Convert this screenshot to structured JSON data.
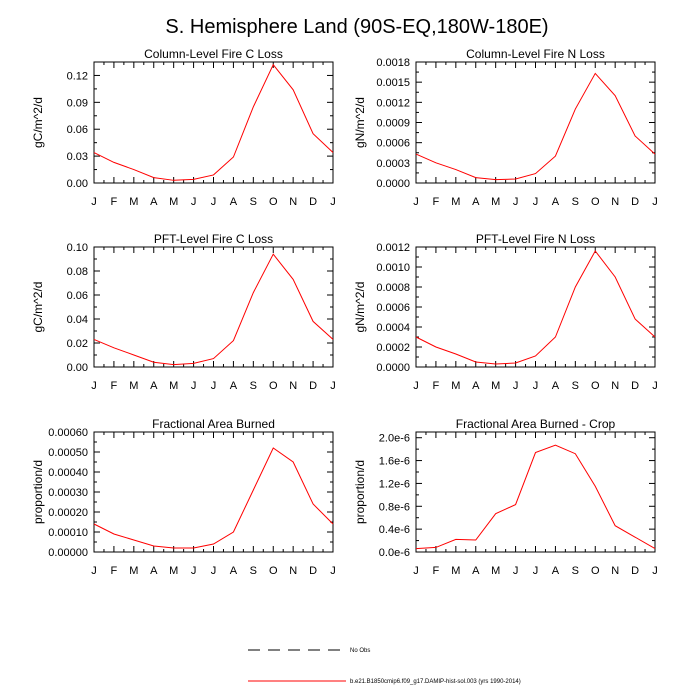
{
  "figure": {
    "title": "S. Hemisphere Land (90S-EQ,180W-180E)"
  },
  "legend": {
    "items": [
      {
        "label": "No Obs",
        "color": "#000000",
        "dash": "dashed"
      },
      {
        "label": "b.e21.B1850cmip6.f09_g17.DAMIP-hist-sol.003 (yrs 1990-2014)",
        "color": "#ff0000",
        "dash": "solid"
      }
    ]
  },
  "chart_data": [
    {
      "type": "line",
      "title": "Column-Level Fire C Loss",
      "xlabel": "",
      "ylabel": "gC/m^2/d",
      "categories": [
        "J",
        "F",
        "M",
        "A",
        "M",
        "J",
        "J",
        "A",
        "S",
        "O",
        "N",
        "D",
        "J"
      ],
      "ylim": [
        0,
        0.135
      ],
      "yticks": [
        "0.00",
        "0.03",
        "0.06",
        "0.09",
        "0.12"
      ],
      "ytick_values": [
        0,
        0.03,
        0.06,
        0.09,
        0.12
      ],
      "series": [
        {
          "color": "#ff0000",
          "values": [
            0.034,
            0.023,
            0.015,
            0.006,
            0.003,
            0.004,
            0.009,
            0.029,
            0.085,
            0.132,
            0.104,
            0.055,
            0.034
          ]
        }
      ]
    },
    {
      "type": "line",
      "title": "Column-Level Fire N Loss",
      "xlabel": "",
      "ylabel": "gN/m^2/d",
      "categories": [
        "J",
        "F",
        "M",
        "A",
        "M",
        "J",
        "J",
        "A",
        "S",
        "O",
        "N",
        "D",
        "J"
      ],
      "ylim": [
        0,
        0.0018
      ],
      "yticks": [
        "0.0000",
        "0.0003",
        "0.0006",
        "0.0009",
        "0.0012",
        "0.0015",
        "0.0018"
      ],
      "ytick_values": [
        0,
        0.0003,
        0.0006,
        0.0009,
        0.0012,
        0.0015,
        0.0018
      ],
      "series": [
        {
          "color": "#ff0000",
          "values": [
            0.00043,
            0.0003,
            0.0002,
            8e-05,
            5e-05,
            6e-05,
            0.00014,
            0.0004,
            0.0011,
            0.00163,
            0.0013,
            0.0007,
            0.00043
          ]
        }
      ]
    },
    {
      "type": "line",
      "title": "PFT-Level Fire C Loss",
      "xlabel": "",
      "ylabel": "gC/m^2/d",
      "categories": [
        "J",
        "F",
        "M",
        "A",
        "M",
        "J",
        "J",
        "A",
        "S",
        "O",
        "N",
        "D",
        "J"
      ],
      "ylim": [
        0,
        0.1
      ],
      "yticks": [
        "0.00",
        "0.02",
        "0.04",
        "0.06",
        "0.08",
        "0.10"
      ],
      "ytick_values": [
        0,
        0.02,
        0.04,
        0.06,
        0.08,
        0.1
      ],
      "series": [
        {
          "color": "#ff0000",
          "values": [
            0.023,
            0.016,
            0.01,
            0.004,
            0.002,
            0.003,
            0.007,
            0.022,
            0.062,
            0.094,
            0.073,
            0.038,
            0.023
          ]
        }
      ]
    },
    {
      "type": "line",
      "title": "PFT-Level Fire N Loss",
      "xlabel": "",
      "ylabel": "gN/m^2/d",
      "categories": [
        "J",
        "F",
        "M",
        "A",
        "M",
        "J",
        "J",
        "A",
        "S",
        "O",
        "N",
        "D",
        "J"
      ],
      "ylim": [
        0,
        0.0012
      ],
      "yticks": [
        "0.0000",
        "0.0002",
        "0.0004",
        "0.0006",
        "0.0008",
        "0.0010",
        "0.0012"
      ],
      "ytick_values": [
        0,
        0.0002,
        0.0004,
        0.0006,
        0.0008,
        0.001,
        0.0012
      ],
      "series": [
        {
          "color": "#ff0000",
          "values": [
            0.0003,
            0.0002,
            0.00013,
            5e-05,
            3e-05,
            4e-05,
            0.00011,
            0.0003,
            0.0008,
            0.00116,
            0.0009,
            0.00048,
            0.0003
          ]
        }
      ]
    },
    {
      "type": "line",
      "title": "Fractional Area Burned",
      "xlabel": "",
      "ylabel": "proportion/d",
      "categories": [
        "J",
        "F",
        "M",
        "A",
        "M",
        "J",
        "J",
        "A",
        "S",
        "O",
        "N",
        "D",
        "J"
      ],
      "ylim": [
        0,
        0.0006
      ],
      "yticks": [
        "0.00000",
        "0.00010",
        "0.00020",
        "0.00030",
        "0.00040",
        "0.00050",
        "0.00060"
      ],
      "ytick_values": [
        0,
        0.0001,
        0.0002,
        0.0003,
        0.0004,
        0.0005,
        0.0006
      ],
      "series": [
        {
          "color": "#ff0000",
          "values": [
            0.00014,
            9e-05,
            6e-05,
            3e-05,
            2e-05,
            2e-05,
            4e-05,
            0.0001,
            0.00031,
            0.00052,
            0.00045,
            0.00024,
            0.00014
          ]
        }
      ]
    },
    {
      "type": "line",
      "title": "Fractional Area Burned - Crop",
      "xlabel": "",
      "ylabel": "proportion/d",
      "categories": [
        "J",
        "F",
        "M",
        "A",
        "M",
        "J",
        "J",
        "A",
        "S",
        "O",
        "N",
        "D",
        "J"
      ],
      "ylim": [
        0,
        2.1e-06
      ],
      "yticks": [
        "0.0e-6",
        "0.4e-6",
        "0.8e-6",
        "1.2e-6",
        "1.6e-6",
        "2.0e-6"
      ],
      "ytick_values": [
        0,
        4e-07,
        8e-07,
        1.2e-06,
        1.6e-06,
        2e-06
      ],
      "series": [
        {
          "color": "#ff0000",
          "values": [
            6e-08,
            8e-08,
            2.2e-07,
            2.1e-07,
            6.7e-07,
            8.3e-07,
            1.74e-06,
            1.87e-06,
            1.72e-06,
            1.15e-06,
            4.6e-07,
            2.6e-07,
            6e-08
          ]
        }
      ]
    }
  ]
}
